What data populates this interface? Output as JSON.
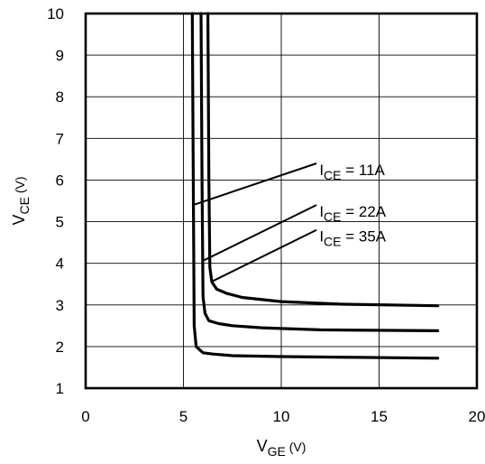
{
  "chart_data": {
    "type": "line",
    "xlabel": {
      "main": "V",
      "sub": "GE",
      "unit": " (V)"
    },
    "ylabel": {
      "main": "V",
      "sub": "CE",
      "unit": " (V)"
    },
    "xlim": [
      0,
      20
    ],
    "ylim": [
      1,
      10
    ],
    "xticks": [
      "0",
      "5",
      "10",
      "15",
      "20"
    ],
    "yticks": [
      "1",
      "2",
      "3",
      "4",
      "5",
      "6",
      "7",
      "8",
      "9",
      "10"
    ],
    "grid": true,
    "series": [
      {
        "annotation": {
          "main": "I",
          "sub": "CE",
          "rest": " = 11A"
        },
        "x": [
          5.45,
          5.5,
          5.55,
          5.65,
          6.0,
          6.5,
          7.5,
          10,
          14,
          18
        ],
        "y": [
          10,
          6,
          2.5,
          2.0,
          1.85,
          1.82,
          1.78,
          1.76,
          1.74,
          1.72
        ]
      },
      {
        "annotation": {
          "main": "I",
          "sub": "CE",
          "rest": " = 22A"
        },
        "x": [
          5.9,
          5.95,
          6.0,
          6.1,
          6.3,
          6.8,
          7.5,
          9,
          12,
          18
        ],
        "y": [
          10,
          6,
          3.2,
          2.8,
          2.62,
          2.55,
          2.5,
          2.45,
          2.4,
          2.38
        ]
      },
      {
        "annotation": {
          "main": "I",
          "sub": "CE",
          "rest": " = 35A"
        },
        "x": [
          6.25,
          6.3,
          6.35,
          6.45,
          6.7,
          7.2,
          8,
          10,
          13,
          18
        ],
        "y": [
          10,
          6,
          3.9,
          3.55,
          3.38,
          3.28,
          3.18,
          3.08,
          3.02,
          2.98
        ]
      }
    ]
  }
}
